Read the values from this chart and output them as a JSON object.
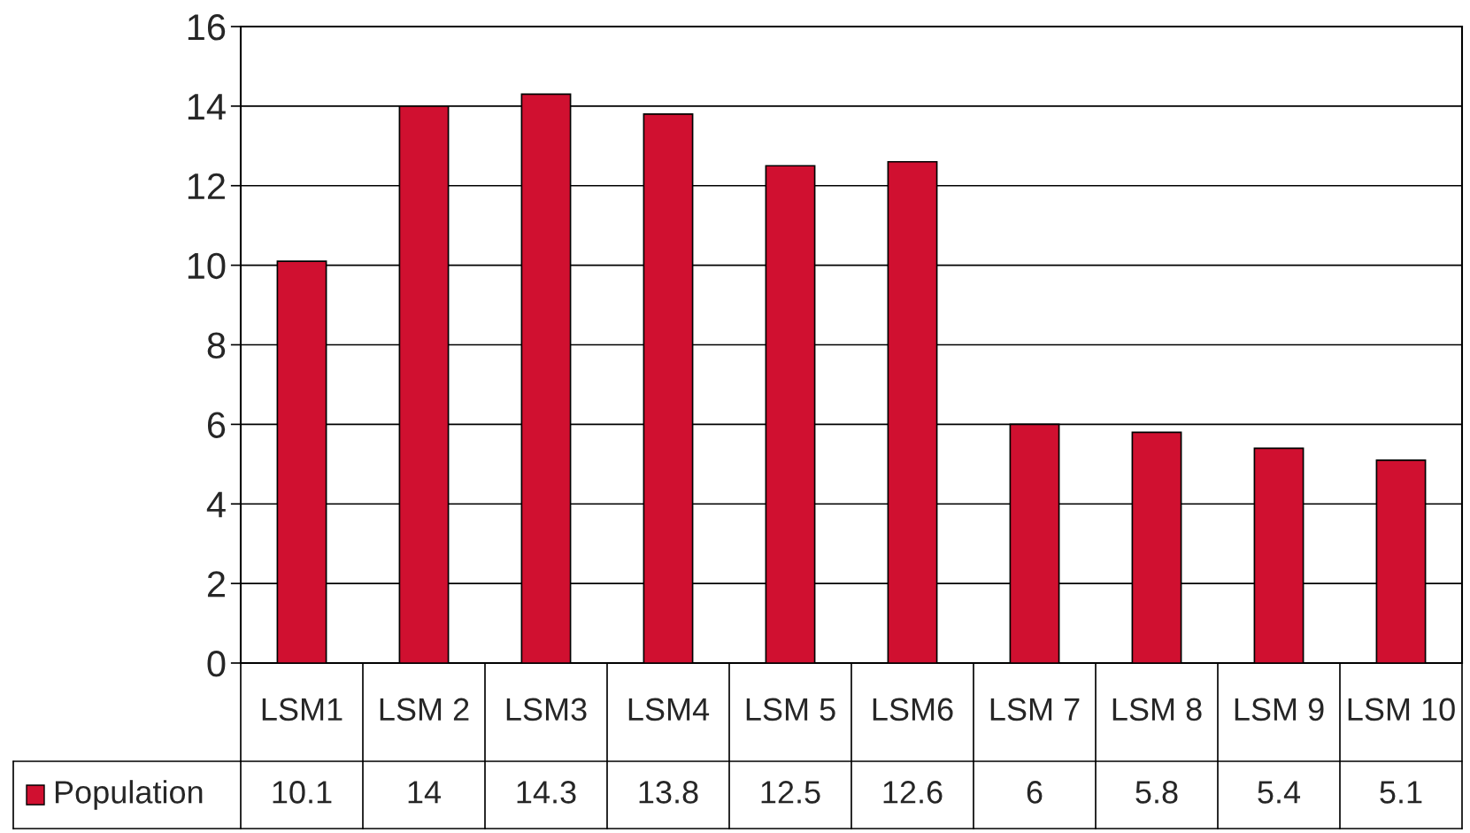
{
  "chart_data": {
    "type": "bar",
    "categories": [
      "LSM1",
      "LSM 2",
      "LSM3",
      "LSM4",
      "LSM 5",
      "LSM6",
      "LSM 7",
      "LSM 8",
      "LSM 9",
      "LSM 10"
    ],
    "series": [
      {
        "name": "Population",
        "color": "#d01030",
        "values": [
          10.1,
          14,
          14.3,
          13.8,
          12.5,
          12.6,
          6,
          5.8,
          5.4,
          5.1
        ]
      }
    ],
    "ylim": [
      0,
      16
    ],
    "yticks": [
      0,
      2,
      4,
      6,
      8,
      10,
      12,
      14,
      16
    ],
    "grid": "y",
    "legend": "bottom left",
    "data_labels": true
  }
}
